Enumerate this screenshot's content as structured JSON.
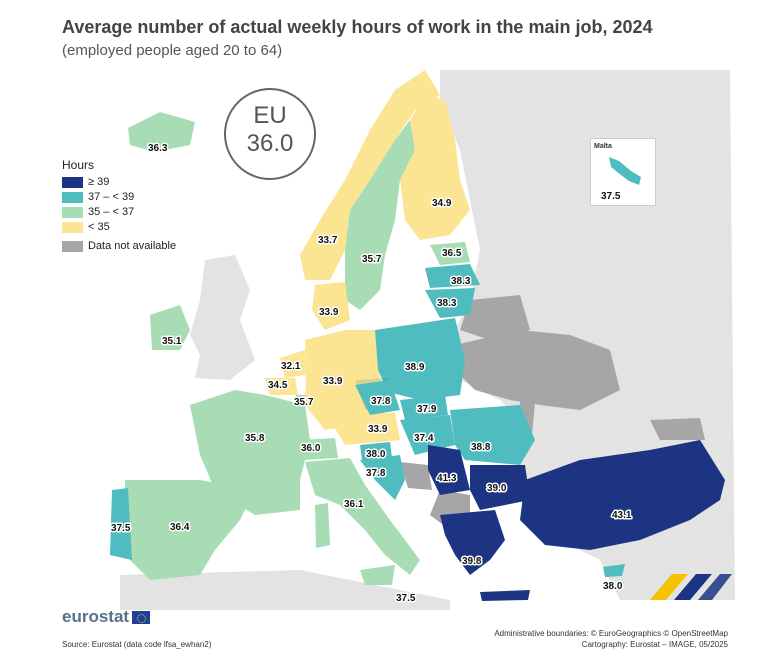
{
  "title": "Average number of actual weekly hours of work in the main job, 2024",
  "subtitle": "(employed people aged 20 to 64)",
  "eu_box": {
    "label": "EU",
    "value": "36.0"
  },
  "legend": {
    "title": "Hours",
    "classes": [
      {
        "label": "≥ 39",
        "color": "#1d3483"
      },
      {
        "label": "37 – < 39",
        "color": "#4fbcc0"
      },
      {
        "label": "35 – < 37",
        "color": "#a8dcb5"
      },
      {
        "label": "< 35",
        "color": "#fbe593"
      }
    ],
    "na": {
      "label": "Data not available",
      "color": "#a6a6a6"
    }
  },
  "inset": {
    "name": "Malta",
    "value": "37.5"
  },
  "map_values": [
    {
      "id": "IS",
      "value": "36.3"
    },
    {
      "id": "NO",
      "value": "33.7"
    },
    {
      "id": "SE",
      "value": "35.7"
    },
    {
      "id": "FI",
      "value": "34.9"
    },
    {
      "id": "EE",
      "value": "36.5"
    },
    {
      "id": "LV",
      "value": "38.3"
    },
    {
      "id": "LT",
      "value": "38.3"
    },
    {
      "id": "DK",
      "value": "33.9"
    },
    {
      "id": "IE",
      "value": "35.1"
    },
    {
      "id": "NL",
      "value": "32.1"
    },
    {
      "id": "BE",
      "value": "34.5"
    },
    {
      "id": "LU",
      "value": "35.7"
    },
    {
      "id": "DE",
      "value": "33.9"
    },
    {
      "id": "PL",
      "value": "38.9"
    },
    {
      "id": "CZ",
      "value": "37.8"
    },
    {
      "id": "SK",
      "value": "37.9"
    },
    {
      "id": "AT",
      "value": "33.9"
    },
    {
      "id": "HU",
      "value": "37.4"
    },
    {
      "id": "RO",
      "value": "38.8"
    },
    {
      "id": "FR",
      "value": "35.8"
    },
    {
      "id": "CH",
      "value": "36.0"
    },
    {
      "id": "SI",
      "value": "38.0"
    },
    {
      "id": "HR",
      "value": "37.8"
    },
    {
      "id": "RS",
      "value": "41.3"
    },
    {
      "id": "BG",
      "value": "39.0"
    },
    {
      "id": "IT",
      "value": "36.1"
    },
    {
      "id": "PT",
      "value": "37.5"
    },
    {
      "id": "ES",
      "value": "36.4"
    },
    {
      "id": "EL",
      "value": "39.8"
    },
    {
      "id": "TR",
      "value": "43.1"
    },
    {
      "id": "CY",
      "value": "38.0"
    },
    {
      "id": "MT",
      "value": "37.5"
    }
  ],
  "brand": "eurostat",
  "source": "Source: Eurostat (data code lfsa_ewhan2)",
  "credits": [
    "Administrative boundaries: © EuroGeographics © OpenStreetMap",
    "Cartography: Eurostat – IMAGE, 05/2025"
  ]
}
